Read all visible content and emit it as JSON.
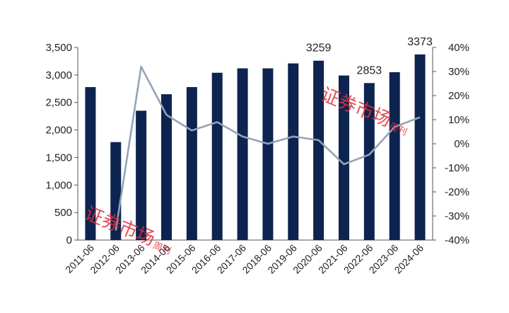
{
  "chart_data": {
    "type": "bar",
    "categories": [
      "2011-06",
      "2012-06",
      "2013-06",
      "2014-06",
      "2015-06",
      "2016-06",
      "2017-06",
      "2018-06",
      "2019-06",
      "2020-06",
      "2021-06",
      "2022-06",
      "2023-06",
      "2024-06"
    ],
    "series": [
      {
        "axis": "left",
        "type": "bar",
        "color": "#0d2450",
        "values": [
          2780,
          1780,
          2350,
          2650,
          2780,
          3040,
          3120,
          3120,
          3210,
          3259,
          2990,
          2853,
          3050,
          3373
        ]
      },
      {
        "axis": "right",
        "type": "line",
        "color": "#93a4b8",
        "values": [
          null,
          -36,
          32,
          12,
          5.5,
          9,
          3,
          0,
          3,
          1.5,
          -8.5,
          -4.5,
          7,
          11
        ]
      }
    ],
    "data_labels": [
      {
        "index": 9,
        "text": "3259"
      },
      {
        "index": 11,
        "text": "2853"
      },
      {
        "index": 13,
        "text": "3373"
      }
    ],
    "ylim": [
      0,
      3500
    ],
    "y_ticks": [
      "0",
      "500",
      "1,000",
      "1,500",
      "2,000",
      "2,500",
      "3,000",
      "3,500"
    ],
    "y2lim": [
      -40,
      40
    ],
    "y2_ticks": [
      "-40%",
      "-30%",
      "-20%",
      "-10%",
      "0%",
      "10%",
      "20%",
      "30%",
      "40%"
    ],
    "grid": false,
    "title": "",
    "xlabel": "",
    "ylabel": ""
  },
  "watermark": {
    "text": "证券市场",
    "small_text": "周刊"
  }
}
